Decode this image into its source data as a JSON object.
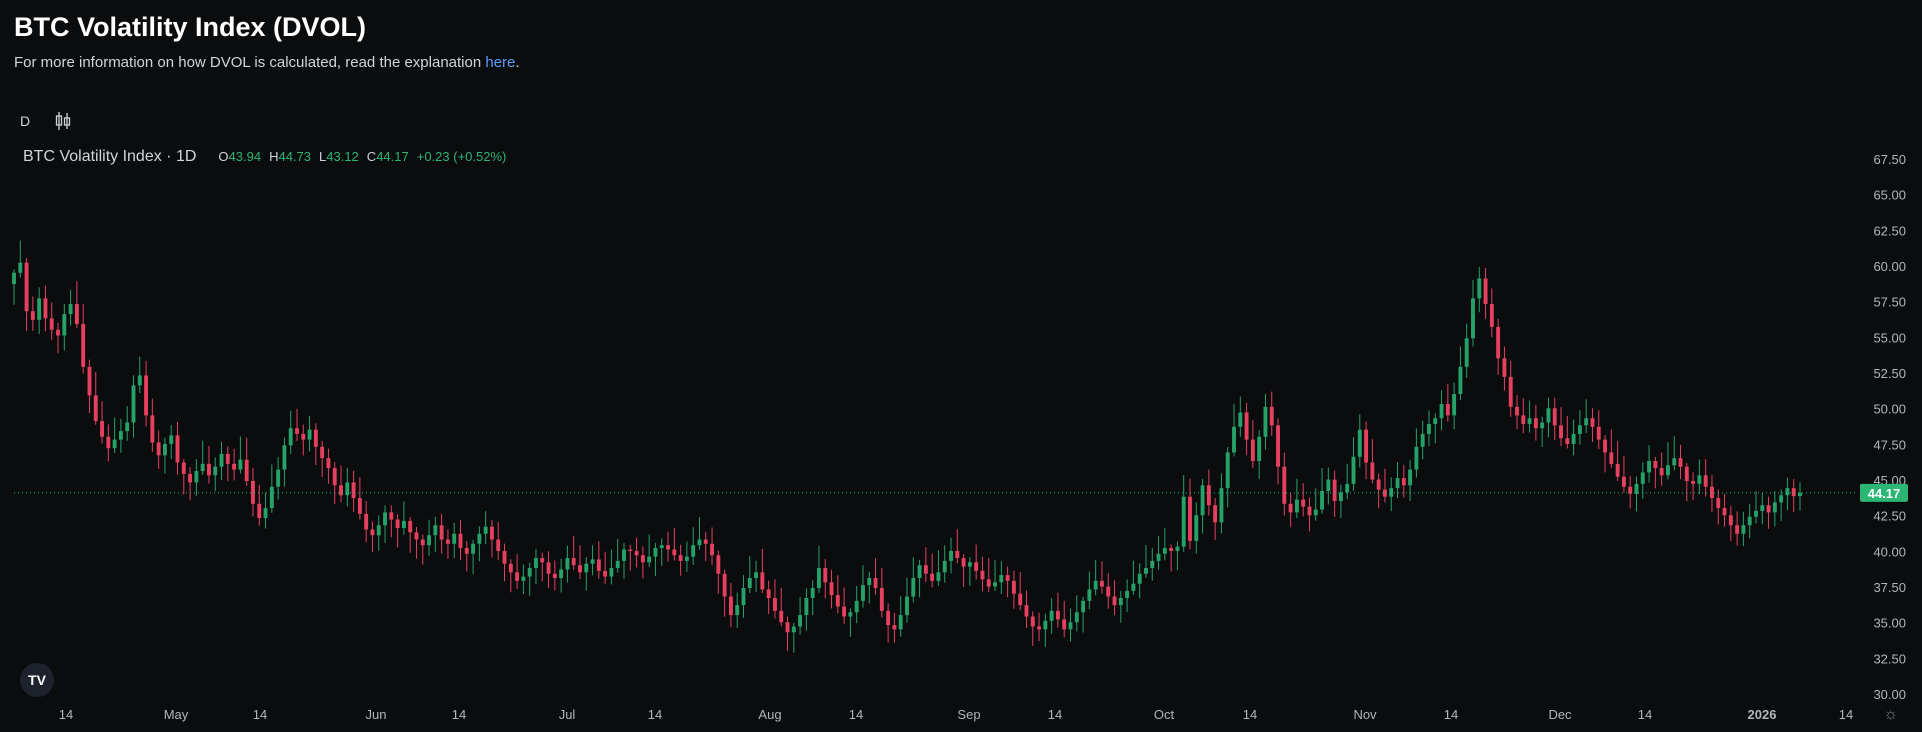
{
  "page": {
    "title": "BTC Volatility Index (DVOL)",
    "subtitle_prefix": "For more information on how DVOL is calculated, read the explanation ",
    "subtitle_link": "here",
    "subtitle_suffix": "."
  },
  "toolbar": {
    "interval_label": "D",
    "chart_type_icon": "candlestick-icon"
  },
  "legend": {
    "symbol_name": "BTC Volatility Index · 1D",
    "open_key": "O",
    "open": "43.94",
    "high_key": "H",
    "high": "44.73",
    "low_key": "L",
    "low": "43.12",
    "close_key": "C",
    "close": "44.17",
    "change": "+0.23 (+0.52%)"
  },
  "colors": {
    "background": "#0b0c0e",
    "up": "#26a269",
    "down": "#e5415e",
    "text": "#d1d4dc",
    "axis_text": "#b2b5be",
    "price_line": "#2bb673",
    "link": "#5b9cff"
  },
  "price_label": "44.17",
  "logo_text": "TV",
  "settings_icon": "gear-icon",
  "chart_data": {
    "type": "candlestick",
    "title": "BTC Volatility Index (DVOL)",
    "ylim": [
      30,
      67.5
    ],
    "y_ticks": [
      "67.50",
      "65.00",
      "62.50",
      "60.00",
      "57.50",
      "55.00",
      "52.50",
      "50.00",
      "47.50",
      "45.00",
      "42.50",
      "40.00",
      "37.50",
      "35.00",
      "32.50",
      "30.00"
    ],
    "x_ticks": [
      "14",
      "May",
      "14",
      "Jun",
      "14",
      "Jul",
      "14",
      "Aug",
      "14",
      "Sep",
      "14",
      "Oct",
      "14",
      "Nov",
      "14",
      "Dec",
      "14",
      "2026",
      "14"
    ],
    "last_close": 44.17,
    "closes": [
      59.6,
      60.3,
      56.9,
      56.3,
      57.8,
      56.4,
      55.6,
      55.2,
      56.7,
      57.4,
      56.0,
      53.0,
      51.0,
      49.2,
      48.1,
      47.3,
      47.9,
      48.5,
      49.1,
      51.7,
      52.4,
      49.6,
      47.7,
      46.8,
      47.6,
      48.2,
      46.3,
      45.5,
      44.9,
      45.7,
      46.2,
      45.4,
      46.0,
      46.9,
      46.2,
      45.8,
      46.5,
      45.0,
      43.4,
      42.4,
      43.1,
      44.6,
      45.8,
      47.5,
      48.7,
      48.3,
      47.9,
      48.6,
      47.4,
      46.6,
      45.9,
      44.7,
      44.0,
      44.9,
      43.8,
      42.7,
      41.6,
      41.2,
      41.9,
      42.8,
      42.3,
      41.7,
      42.2,
      41.4,
      40.9,
      40.5,
      41.2,
      41.9,
      40.9,
      40.6,
      41.3,
      40.3,
      39.9,
      40.6,
      41.3,
      41.8,
      40.9,
      40.1,
      39.2,
      38.6,
      38.0,
      38.3,
      38.9,
      39.6,
      39.3,
      38.5,
      38.2,
      38.8,
      39.6,
      39.1,
      38.6,
      39.2,
      39.5,
      38.7,
      38.3,
      38.9,
      39.4,
      40.2,
      40.1,
      39.8,
      39.3,
      39.7,
      40.3,
      40.5,
      40.2,
      39.8,
      39.4,
      39.7,
      40.5,
      40.9,
      40.6,
      39.8,
      38.5,
      36.9,
      35.6,
      36.3,
      37.5,
      38.2,
      38.6,
      37.4,
      36.8,
      35.9,
      35.1,
      34.4,
      34.8,
      35.6,
      36.8,
      37.5,
      38.9,
      37.9,
      37.0,
      36.2,
      35.5,
      35.8,
      36.6,
      37.7,
      38.2,
      37.5,
      35.9,
      34.9,
      34.6,
      35.6,
      36.9,
      38.2,
      39.1,
      38.5,
      38.0,
      38.6,
      39.4,
      40.1,
      39.6,
      39.0,
      39.3,
      38.7,
      38.1,
      37.6,
      37.9,
      38.4,
      38.0,
      37.1,
      36.3,
      35.5,
      34.8,
      34.6,
      35.2,
      35.9,
      35.3,
      34.6,
      35.1,
      35.8,
      36.6,
      37.4,
      38.0,
      37.6,
      36.9,
      36.3,
      36.8,
      37.3,
      37.8,
      38.5,
      38.9,
      39.4,
      39.9,
      40.3,
      40.1,
      40.4,
      43.9,
      40.8,
      42.6,
      44.7,
      43.3,
      42.1,
      44.5,
      47.0,
      48.8,
      49.8,
      47.9,
      46.4,
      48.1,
      50.2,
      48.9,
      46.0,
      43.4,
      42.8,
      43.7,
      43.2,
      42.6,
      43.0,
      44.3,
      45.1,
      43.6,
      44.2,
      44.8,
      46.7,
      48.6,
      46.3,
      45.1,
      44.4,
      43.9,
      44.5,
      45.2,
      44.7,
      45.8,
      47.4,
      48.3,
      49.0,
      49.4,
      50.4,
      49.6,
      51.1,
      53.0,
      55.0,
      57.8,
      59.2,
      57.4,
      55.8,
      53.6,
      52.3,
      50.2,
      49.6,
      49.0,
      49.4,
      48.7,
      49.1,
      50.1,
      48.9,
      48.0,
      47.6,
      48.3,
      48.9,
      49.4,
      48.8,
      47.9,
      47.0,
      46.2,
      45.3,
      44.6,
      44.1,
      44.8,
      45.6,
      46.4,
      45.9,
      45.4,
      46.1,
      46.6,
      46.0,
      45.0,
      44.8,
      45.4,
      44.6,
      43.8,
      43.1,
      42.6,
      41.9,
      41.3,
      41.9,
      42.5,
      42.9,
      43.3,
      42.8,
      43.5,
      44.0,
      44.5,
      43.94,
      44.17
    ]
  }
}
